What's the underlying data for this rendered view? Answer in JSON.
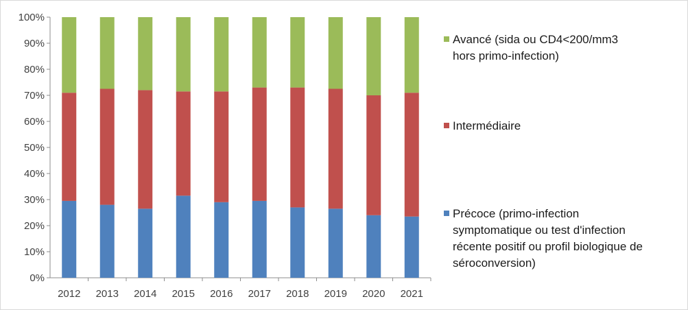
{
  "chart_data": {
    "type": "bar",
    "stacked": true,
    "categories": [
      "2012",
      "2013",
      "2014",
      "2015",
      "2016",
      "2017",
      "2018",
      "2019",
      "2020",
      "2021"
    ],
    "series": [
      {
        "name": "Précoce (primo-infection symptomatique ou test d'infection récente positif ou profil biologique de séroconversion)",
        "values": [
          29.5,
          28,
          26.5,
          31.5,
          29,
          29.5,
          27,
          26.5,
          24,
          23.5
        ],
        "color": "#4f81bd"
      },
      {
        "name": "Intermédiaire",
        "values": [
          41.5,
          44.5,
          45.5,
          40,
          42.5,
          43.5,
          46,
          46,
          46,
          47.5
        ],
        "color": "#c0504d"
      },
      {
        "name": "Avancé (sida ou CD4<200/mm3 hors primo-infection)",
        "values": [
          29,
          27.5,
          28,
          28.5,
          28.5,
          27,
          27,
          27.5,
          30,
          29
        ],
        "color": "#9bbb59"
      }
    ],
    "ylim": [
      0,
      100
    ],
    "yticks": [
      "0%",
      "10%",
      "20%",
      "30%",
      "40%",
      "50%",
      "60%",
      "70%",
      "80%",
      "90%",
      "100%"
    ],
    "grid": false,
    "legend_position": "right",
    "title": "",
    "xlabel": "",
    "ylabel": ""
  },
  "legend": [
    {
      "lines": [
        "Avancé (sida ou CD4<200/mm3",
        "hors primo-infection)"
      ],
      "color": "#9bbb59"
    },
    {
      "lines": [
        "Intermédiaire"
      ],
      "color": "#c0504d"
    },
    {
      "lines": [
        "Précoce (primo-infection",
        "symptomatique ou test d'infection",
        "récente positif ou profil biologique de",
        "séroconversion)"
      ],
      "color": "#4f81bd"
    }
  ]
}
